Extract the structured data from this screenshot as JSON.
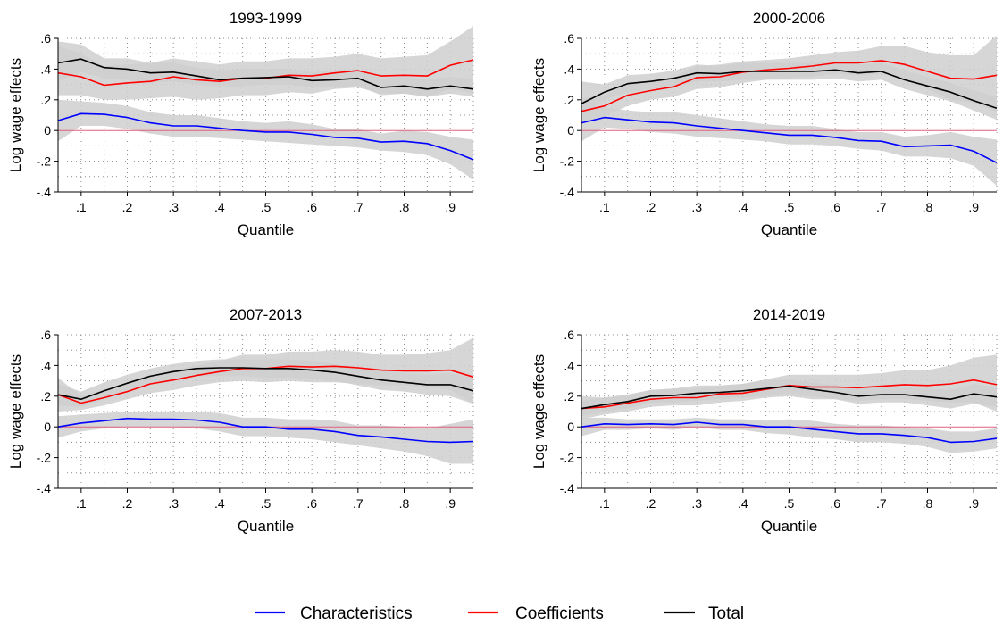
{
  "chart_data": [
    {
      "type": "line",
      "title": "1993-1999",
      "xlabel": "Quantile",
      "ylabel": "Log wage effects",
      "xlim": [
        0.05,
        0.95
      ],
      "ylim": [
        -0.4,
        0.6
      ],
      "xticks": [
        0.1,
        0.2,
        0.3,
        0.4,
        0.5,
        0.6,
        0.7,
        0.8,
        0.9
      ],
      "xtick_labels": [
        ".1",
        ".2",
        ".3",
        ".4",
        ".5",
        ".6",
        ".7",
        ".8",
        ".9"
      ],
      "yticks": [
        -0.4,
        -0.2,
        0,
        0.2,
        0.4,
        0.6
      ],
      "ytick_labels": [
        "-.4",
        "-.2",
        "0",
        ".2",
        ".4",
        ".6"
      ],
      "x": [
        0.05,
        0.1,
        0.15,
        0.2,
        0.25,
        0.3,
        0.35,
        0.4,
        0.45,
        0.5,
        0.55,
        0.6,
        0.65,
        0.7,
        0.75,
        0.8,
        0.85,
        0.9,
        0.95
      ],
      "series": [
        {
          "name": "Characteristics",
          "color": "#0000ff",
          "values": [
            0.065,
            0.11,
            0.105,
            0.085,
            0.05,
            0.03,
            0.03,
            0.015,
            0.0,
            -0.01,
            -0.01,
            -0.025,
            -0.045,
            -0.05,
            -0.075,
            -0.07,
            -0.085,
            -0.13,
            -0.19
          ],
          "lower": [
            -0.07,
            0.03,
            0.03,
            0.01,
            -0.02,
            -0.04,
            -0.04,
            -0.05,
            -0.06,
            -0.07,
            -0.08,
            -0.09,
            -0.1,
            -0.11,
            -0.13,
            -0.14,
            -0.16,
            -0.22,
            -0.32
          ],
          "upper": [
            0.2,
            0.19,
            0.18,
            0.16,
            0.12,
            0.1,
            0.1,
            0.08,
            0.06,
            0.05,
            0.06,
            0.04,
            0.01,
            0.01,
            -0.02,
            0.0,
            -0.01,
            -0.04,
            -0.06
          ]
        },
        {
          "name": "Coefficients",
          "color": "#ff0000",
          "values": [
            0.375,
            0.35,
            0.295,
            0.31,
            0.32,
            0.35,
            0.33,
            0.32,
            0.34,
            0.34,
            0.36,
            0.355,
            0.375,
            0.39,
            0.355,
            0.36,
            0.355,
            0.425,
            0.46
          ],
          "lower": [
            0.23,
            0.23,
            0.2,
            0.2,
            0.21,
            0.22,
            0.2,
            0.21,
            0.23,
            0.23,
            0.25,
            0.24,
            0.27,
            0.28,
            0.24,
            0.24,
            0.22,
            0.27,
            0.24
          ],
          "upper": [
            0.55,
            0.5,
            0.42,
            0.43,
            0.44,
            0.47,
            0.45,
            0.43,
            0.45,
            0.45,
            0.47,
            0.47,
            0.48,
            0.5,
            0.47,
            0.48,
            0.49,
            0.58,
            0.68
          ]
        },
        {
          "name": "Total",
          "color": "#000000",
          "values": [
            0.44,
            0.465,
            0.41,
            0.4,
            0.375,
            0.38,
            0.355,
            0.33,
            0.34,
            0.345,
            0.35,
            0.325,
            0.33,
            0.34,
            0.28,
            0.29,
            0.27,
            0.29,
            0.27
          ],
          "lower": [
            0.32,
            0.38,
            0.34,
            0.33,
            0.31,
            0.32,
            0.3,
            0.28,
            0.29,
            0.3,
            0.3,
            0.28,
            0.28,
            0.29,
            0.23,
            0.24,
            0.22,
            0.24,
            0.22
          ],
          "upper": [
            0.58,
            0.56,
            0.47,
            0.47,
            0.44,
            0.44,
            0.41,
            0.39,
            0.4,
            0.4,
            0.4,
            0.38,
            0.39,
            0.4,
            0.34,
            0.35,
            0.33,
            0.35,
            0.33
          ]
        }
      ]
    },
    {
      "type": "line",
      "title": "2000-2006",
      "xlabel": "Quantile",
      "ylabel": "Log wage effects",
      "xlim": [
        0.05,
        0.95
      ],
      "ylim": [
        -0.4,
        0.6
      ],
      "xticks": [
        0.1,
        0.2,
        0.3,
        0.4,
        0.5,
        0.6,
        0.7,
        0.8,
        0.9
      ],
      "xtick_labels": [
        ".1",
        ".2",
        ".3",
        ".4",
        ".5",
        ".6",
        ".7",
        ".8",
        ".9"
      ],
      "yticks": [
        -0.4,
        -0.2,
        0,
        0.2,
        0.4,
        0.6
      ],
      "ytick_labels": [
        "-.4",
        "-.2",
        "0",
        ".2",
        ".4",
        ".6"
      ],
      "x": [
        0.05,
        0.1,
        0.15,
        0.2,
        0.25,
        0.3,
        0.35,
        0.4,
        0.45,
        0.5,
        0.55,
        0.6,
        0.65,
        0.7,
        0.75,
        0.8,
        0.85,
        0.9,
        0.95
      ],
      "series": [
        {
          "name": "Characteristics",
          "color": "#0000ff",
          "values": [
            0.05,
            0.085,
            0.07,
            0.055,
            0.05,
            0.03,
            0.015,
            0.0,
            -0.015,
            -0.03,
            -0.03,
            -0.045,
            -0.065,
            -0.07,
            -0.105,
            -0.1,
            -0.095,
            -0.135,
            -0.21
          ],
          "lower": [
            -0.07,
            0.02,
            0.01,
            -0.01,
            -0.02,
            -0.04,
            -0.05,
            -0.06,
            -0.07,
            -0.09,
            -0.09,
            -0.1,
            -0.12,
            -0.13,
            -0.17,
            -0.17,
            -0.18,
            -0.23,
            -0.36
          ],
          "upper": [
            0.17,
            0.15,
            0.13,
            0.12,
            0.12,
            0.1,
            0.08,
            0.06,
            0.04,
            0.03,
            0.03,
            0.01,
            -0.01,
            -0.01,
            -0.04,
            -0.03,
            -0.01,
            -0.04,
            -0.06
          ]
        },
        {
          "name": "Coefficients",
          "color": "#ff0000",
          "values": [
            0.125,
            0.16,
            0.23,
            0.26,
            0.285,
            0.345,
            0.35,
            0.38,
            0.395,
            0.405,
            0.42,
            0.44,
            0.44,
            0.455,
            0.43,
            0.385,
            0.34,
            0.335,
            0.36
          ],
          "lower": [
            0.04,
            0.09,
            0.16,
            0.2,
            0.22,
            0.27,
            0.28,
            0.31,
            0.33,
            0.34,
            0.35,
            0.37,
            0.36,
            0.37,
            0.33,
            0.27,
            0.2,
            0.18,
            0.12
          ],
          "upper": [
            0.21,
            0.23,
            0.3,
            0.32,
            0.35,
            0.42,
            0.43,
            0.45,
            0.46,
            0.47,
            0.49,
            0.51,
            0.52,
            0.55,
            0.55,
            0.51,
            0.49,
            0.49,
            0.62
          ]
        },
        {
          "name": "Total",
          "color": "#000000",
          "values": [
            0.175,
            0.25,
            0.305,
            0.32,
            0.34,
            0.375,
            0.37,
            0.385,
            0.385,
            0.385,
            0.385,
            0.395,
            0.375,
            0.385,
            0.33,
            0.29,
            0.25,
            0.195,
            0.145
          ],
          "lower": [
            0.1,
            0.2,
            0.25,
            0.27,
            0.29,
            0.32,
            0.32,
            0.33,
            0.33,
            0.33,
            0.33,
            0.34,
            0.32,
            0.33,
            0.27,
            0.23,
            0.19,
            0.13,
            0.07
          ],
          "upper": [
            0.32,
            0.3,
            0.36,
            0.37,
            0.39,
            0.43,
            0.42,
            0.44,
            0.44,
            0.44,
            0.44,
            0.45,
            0.43,
            0.44,
            0.39,
            0.35,
            0.31,
            0.26,
            0.22
          ]
        }
      ]
    },
    {
      "type": "line",
      "title": "2007-2013",
      "xlabel": "Quantile",
      "ylabel": "Log wage effects",
      "xlim": [
        0.05,
        0.95
      ],
      "ylim": [
        -0.4,
        0.6
      ],
      "xticks": [
        0.1,
        0.2,
        0.3,
        0.4,
        0.5,
        0.6,
        0.7,
        0.8,
        0.9
      ],
      "xtick_labels": [
        ".1",
        ".2",
        ".3",
        ".4",
        ".5",
        ".6",
        ".7",
        ".8",
        ".9"
      ],
      "yticks": [
        -0.4,
        -0.2,
        0,
        0.2,
        0.4,
        0.6
      ],
      "ytick_labels": [
        "-.4",
        "-.2",
        "0",
        ".2",
        ".4",
        ".6"
      ],
      "x": [
        0.05,
        0.1,
        0.15,
        0.2,
        0.25,
        0.3,
        0.35,
        0.4,
        0.45,
        0.5,
        0.55,
        0.6,
        0.65,
        0.7,
        0.75,
        0.8,
        0.85,
        0.9,
        0.95
      ],
      "series": [
        {
          "name": "Characteristics",
          "color": "#0000ff",
          "values": [
            0.0,
            0.025,
            0.04,
            0.055,
            0.05,
            0.05,
            0.045,
            0.03,
            0.0,
            0.0,
            -0.015,
            -0.015,
            -0.03,
            -0.055,
            -0.065,
            -0.08,
            -0.095,
            -0.1,
            -0.095
          ],
          "lower": [
            -0.07,
            -0.03,
            -0.01,
            0.0,
            0.0,
            0.0,
            -0.01,
            -0.03,
            -0.06,
            -0.06,
            -0.07,
            -0.08,
            -0.1,
            -0.12,
            -0.14,
            -0.16,
            -0.19,
            -0.24,
            -0.24
          ],
          "upper": [
            0.07,
            0.08,
            0.09,
            0.1,
            0.1,
            0.1,
            0.1,
            0.09,
            0.06,
            0.06,
            0.05,
            0.05,
            0.04,
            0.01,
            0.01,
            0.0,
            -0.01,
            0.02,
            0.05
          ]
        },
        {
          "name": "Coefficients",
          "color": "#ff0000",
          "values": [
            0.21,
            0.155,
            0.19,
            0.23,
            0.28,
            0.305,
            0.335,
            0.36,
            0.38,
            0.38,
            0.395,
            0.39,
            0.395,
            0.385,
            0.37,
            0.365,
            0.365,
            0.37,
            0.325
          ],
          "lower": [
            0.1,
            0.11,
            0.14,
            0.18,
            0.22,
            0.24,
            0.27,
            0.29,
            0.3,
            0.29,
            0.3,
            0.29,
            0.29,
            0.28,
            0.27,
            0.27,
            0.26,
            0.24,
            0.15
          ],
          "upper": [
            0.32,
            0.2,
            0.24,
            0.29,
            0.34,
            0.37,
            0.4,
            0.43,
            0.47,
            0.47,
            0.49,
            0.49,
            0.5,
            0.49,
            0.47,
            0.47,
            0.48,
            0.5,
            0.58
          ]
        },
        {
          "name": "Total",
          "color": "#000000",
          "values": [
            0.21,
            0.18,
            0.235,
            0.285,
            0.33,
            0.36,
            0.38,
            0.385,
            0.385,
            0.38,
            0.38,
            0.37,
            0.355,
            0.33,
            0.305,
            0.29,
            0.275,
            0.275,
            0.235
          ],
          "lower": [
            0.14,
            0.13,
            0.18,
            0.23,
            0.28,
            0.31,
            0.33,
            0.33,
            0.33,
            0.32,
            0.32,
            0.31,
            0.3,
            0.27,
            0.24,
            0.23,
            0.21,
            0.2,
            0.15
          ],
          "upper": [
            0.28,
            0.23,
            0.29,
            0.34,
            0.38,
            0.41,
            0.43,
            0.44,
            0.44,
            0.44,
            0.44,
            0.43,
            0.41,
            0.39,
            0.37,
            0.35,
            0.34,
            0.35,
            0.32
          ]
        }
      ]
    },
    {
      "type": "line",
      "title": "2014-2019",
      "xlabel": "Quantile",
      "ylabel": "Log wage effects",
      "xlim": [
        0.05,
        0.95
      ],
      "ylim": [
        -0.4,
        0.6
      ],
      "xticks": [
        0.1,
        0.2,
        0.3,
        0.4,
        0.5,
        0.6,
        0.7,
        0.8,
        0.9
      ],
      "xtick_labels": [
        ".1",
        ".2",
        ".3",
        ".4",
        ".5",
        ".6",
        ".7",
        ".8",
        ".9"
      ],
      "yticks": [
        -0.4,
        -0.2,
        0,
        0.2,
        0.4,
        0.6
      ],
      "ytick_labels": [
        "-.4",
        "-.2",
        "0",
        ".2",
        ".4",
        ".6"
      ],
      "x": [
        0.05,
        0.1,
        0.15,
        0.2,
        0.25,
        0.3,
        0.35,
        0.4,
        0.45,
        0.5,
        0.55,
        0.6,
        0.65,
        0.7,
        0.75,
        0.8,
        0.85,
        0.9,
        0.95
      ],
      "series": [
        {
          "name": "Characteristics",
          "color": "#0000ff",
          "values": [
            0.0,
            0.02,
            0.015,
            0.02,
            0.015,
            0.03,
            0.015,
            0.015,
            0.0,
            0.0,
            -0.015,
            -0.03,
            -0.045,
            -0.045,
            -0.055,
            -0.07,
            -0.1,
            -0.095,
            -0.075
          ],
          "lower": [
            -0.06,
            -0.02,
            -0.02,
            -0.01,
            -0.02,
            0.0,
            -0.02,
            -0.02,
            -0.04,
            -0.05,
            -0.07,
            -0.08,
            -0.1,
            -0.1,
            -0.11,
            -0.13,
            -0.17,
            -0.16,
            -0.14
          ],
          "upper": [
            0.06,
            0.06,
            0.05,
            0.05,
            0.05,
            0.06,
            0.05,
            0.05,
            0.04,
            0.05,
            0.04,
            0.02,
            0.01,
            0.01,
            0.0,
            -0.01,
            -0.03,
            -0.03,
            -0.01
          ]
        },
        {
          "name": "Coefficients",
          "color": "#ff0000",
          "values": [
            0.12,
            0.13,
            0.155,
            0.18,
            0.19,
            0.19,
            0.215,
            0.22,
            0.245,
            0.27,
            0.26,
            0.26,
            0.255,
            0.265,
            0.275,
            0.27,
            0.28,
            0.305,
            0.275
          ],
          "lower": [
            0.05,
            0.08,
            0.1,
            0.13,
            0.14,
            0.14,
            0.16,
            0.17,
            0.19,
            0.2,
            0.18,
            0.18,
            0.17,
            0.18,
            0.18,
            0.17,
            0.16,
            0.16,
            0.1
          ],
          "upper": [
            0.2,
            0.19,
            0.21,
            0.24,
            0.25,
            0.25,
            0.27,
            0.28,
            0.31,
            0.34,
            0.34,
            0.34,
            0.34,
            0.35,
            0.37,
            0.37,
            0.4,
            0.45,
            0.47
          ]
        },
        {
          "name": "Total",
          "color": "#000000",
          "values": [
            0.12,
            0.145,
            0.165,
            0.2,
            0.205,
            0.22,
            0.225,
            0.235,
            0.25,
            0.265,
            0.245,
            0.225,
            0.2,
            0.21,
            0.21,
            0.195,
            0.18,
            0.215,
            0.195
          ],
          "lower": [
            0.07,
            0.1,
            0.12,
            0.16,
            0.16,
            0.17,
            0.18,
            0.19,
            0.2,
            0.22,
            0.2,
            0.18,
            0.15,
            0.16,
            0.16,
            0.14,
            0.12,
            0.15,
            0.13
          ],
          "upper": [
            0.17,
            0.19,
            0.21,
            0.24,
            0.25,
            0.27,
            0.27,
            0.28,
            0.3,
            0.31,
            0.29,
            0.27,
            0.25,
            0.26,
            0.26,
            0.25,
            0.24,
            0.28,
            0.26
          ]
        }
      ]
    }
  ],
  "legend": {
    "placement": "bottom",
    "items": [
      {
        "name": "Characteristics",
        "color": "#0000ff"
      },
      {
        "name": "Coefficients",
        "color": "#ff0000"
      },
      {
        "name": "Total",
        "color": "#000000"
      }
    ]
  },
  "colors": {
    "zero_line": "#e06080",
    "band": "#cfcfcf",
    "grid": "#8c8c8c"
  }
}
